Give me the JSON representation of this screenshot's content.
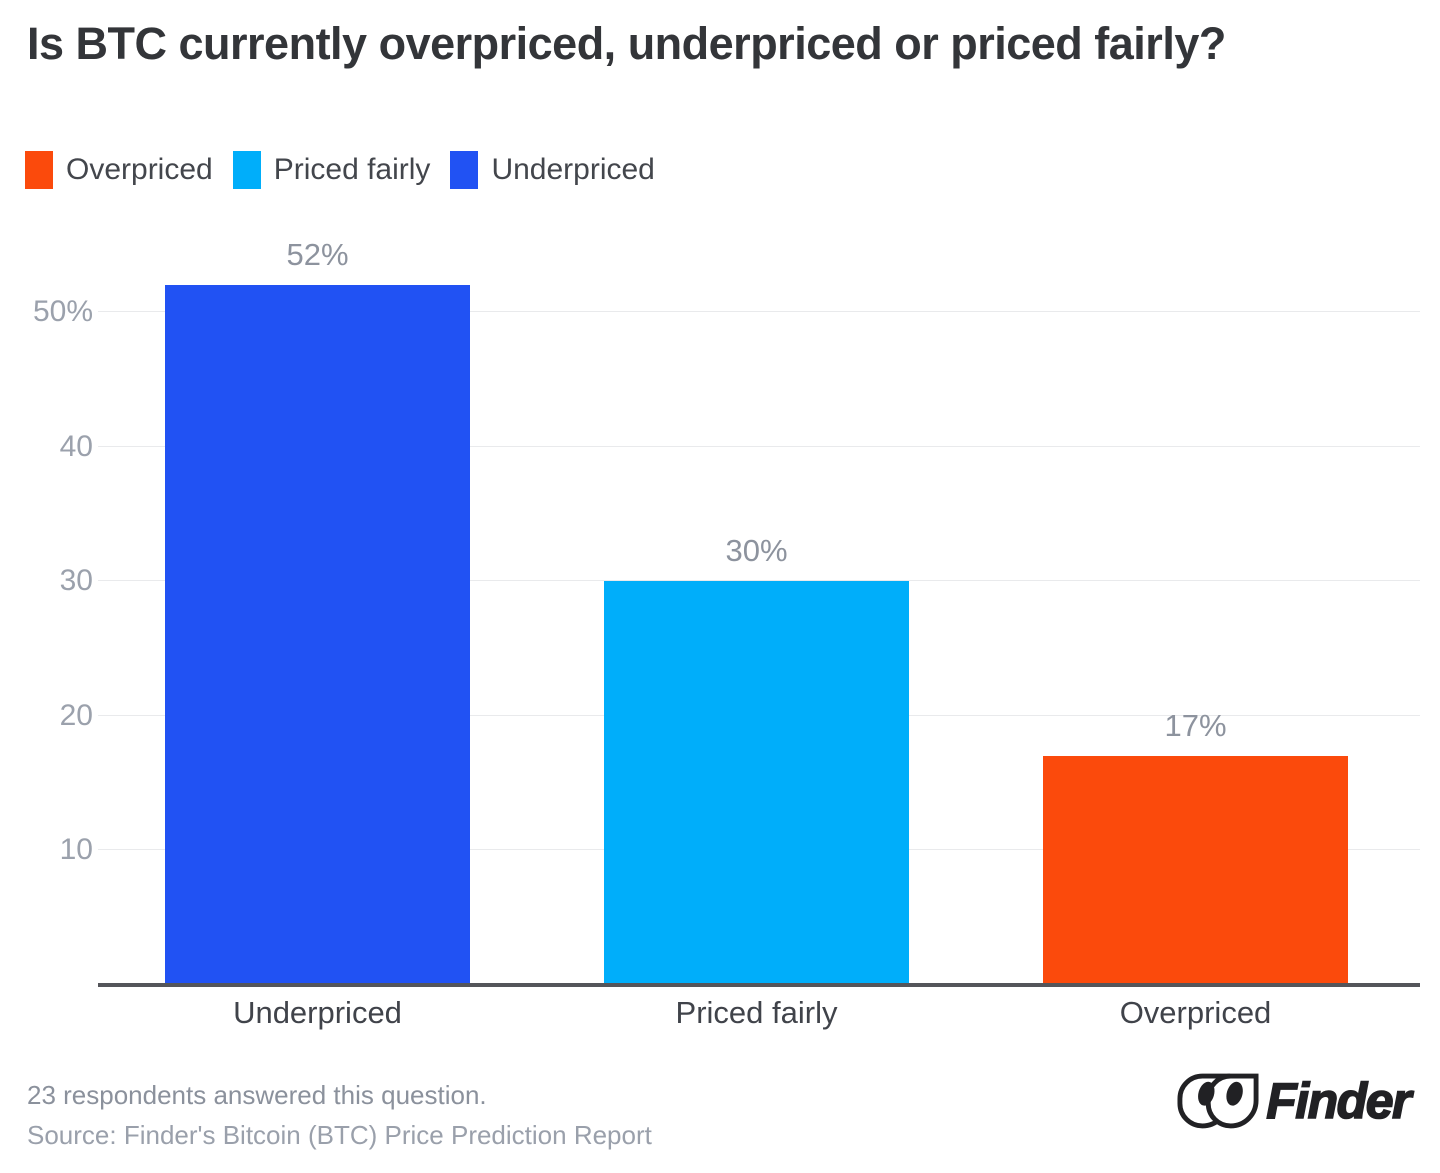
{
  "title": "Is BTC currently overpriced, underpriced or priced fairly?",
  "legend": {
    "position": "top-left",
    "items": [
      {
        "label": "Overpriced",
        "color": "#fb4a0c"
      },
      {
        "label": "Priced fairly",
        "color": "#00aefa"
      },
      {
        "label": "Underpriced",
        "color": "#2152f3"
      }
    ]
  },
  "chart_data": {
    "type": "bar",
    "title": "Is BTC currently overpriced, underpriced or priced fairly?",
    "categories": [
      "Underpriced",
      "Priced fairly",
      "Overpriced"
    ],
    "values": [
      52,
      30,
      17
    ],
    "value_labels": [
      "52%",
      "30%",
      "17%"
    ],
    "bar_colors": [
      "#2152f3",
      "#00aefa",
      "#fb4a0c"
    ],
    "yticks": [
      {
        "value": 10,
        "label": "10"
      },
      {
        "value": 20,
        "label": "20"
      },
      {
        "value": 30,
        "label": "30"
      },
      {
        "value": 40,
        "label": "40"
      },
      {
        "value": 50,
        "label": "50%"
      }
    ],
    "ylim": [
      0,
      55
    ],
    "xlabel": "",
    "ylabel": "",
    "grid": true,
    "legend_position": "top-left"
  },
  "footer": {
    "respondents": "23 respondents answered this question.",
    "source": "Source: Finder's Bitcoin (BTC) Price Prediction Report"
  },
  "logo": {
    "brand": "Finder"
  }
}
